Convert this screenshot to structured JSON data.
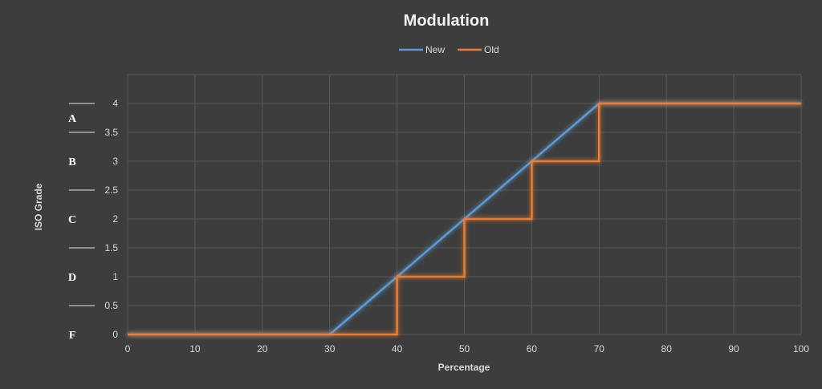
{
  "chart_data": {
    "type": "line",
    "title": "Modulation",
    "xlabel": "Percentage",
    "ylabel": "ISO Grade",
    "xlim": [
      0,
      100
    ],
    "ylim": [
      0,
      4.5
    ],
    "x_ticks": [
      0,
      10,
      20,
      30,
      40,
      50,
      60,
      70,
      80,
      90,
      100
    ],
    "y_ticks": [
      0,
      0.5,
      1,
      1.5,
      2,
      2.5,
      3,
      3.5,
      4
    ],
    "grid": true,
    "legend_position": "top",
    "series": [
      {
        "name": "New",
        "color": "#5b9bd5",
        "points": [
          [
            0,
            0
          ],
          [
            30,
            0
          ],
          [
            70,
            4
          ],
          [
            100,
            4
          ]
        ]
      },
      {
        "name": "Old",
        "color": "#ed7d31",
        "points": [
          [
            0,
            0
          ],
          [
            40,
            0
          ],
          [
            40,
            1
          ],
          [
            50,
            1
          ],
          [
            50,
            2
          ],
          [
            60,
            2
          ],
          [
            60,
            3
          ],
          [
            70,
            3
          ],
          [
            70,
            4
          ],
          [
            100,
            4
          ]
        ]
      }
    ],
    "grade_labels": [
      {
        "label": "A",
        "y": 3.75
      },
      {
        "label": "B",
        "y": 3
      },
      {
        "label": "C",
        "y": 2
      },
      {
        "label": "D",
        "y": 1
      },
      {
        "label": "F",
        "y": 0
      }
    ],
    "grade_separators": [
      4,
      3.5,
      2.5,
      1.5,
      0.5
    ]
  }
}
